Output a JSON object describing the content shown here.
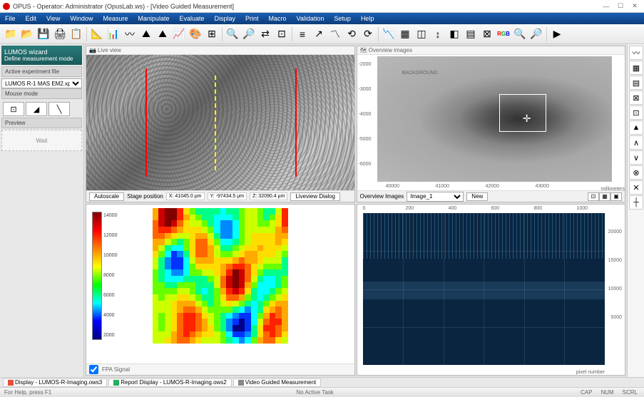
{
  "app": {
    "title": "OPUS - Operator: Administrator (OpusLab.ws) - [Video Guided Measurement]",
    "icon_color": "#d00000"
  },
  "menu": [
    "File",
    "Edit",
    "View",
    "Window",
    "Measure",
    "Manipulate",
    "Evaluate",
    "Display",
    "Print",
    "Macro",
    "Validation",
    "Setup",
    "Help"
  ],
  "toolbar_icons": [
    "📁",
    "📂",
    "💾",
    "🖨",
    "📋",
    "│",
    "📐",
    "📊",
    "〰",
    "⛰",
    "⛰",
    "📈",
    "🎨",
    "⊞",
    "│",
    "🔍",
    "🔎",
    "⇄",
    "⊡",
    "│",
    "≡",
    "↗",
    "〽",
    "⟲",
    "⟳",
    "│",
    "📉",
    "▦",
    "◫",
    "↕",
    "◧",
    "▤",
    "⊠",
    "RGB",
    "🔍",
    "🔎",
    "│",
    "▶"
  ],
  "sidebar": {
    "wizard_title": "LUMOS wizard",
    "wizard_sub": "Define measurement mode",
    "active_exp_label": "Active experiment file",
    "active_exp_value": "LUMOS R-1 MAS EM2.xpm",
    "mouse_mode_label": "Mouse mode",
    "mouse_modes": [
      "⊡",
      "◢",
      "╲"
    ],
    "preview_label": "Preview",
    "preview_text": "Wait"
  },
  "live_view": {
    "title": "Live view",
    "footer": {
      "autoscale_btn": "Autoscale",
      "stage_label": "Stage position",
      "x_coord": "X: 41045.0 µm",
      "y_coord": "Y: -97434.5 µm",
      "z_coord": "Z: 32090.4 µm",
      "liveview_btn": "Liveview Dialog"
    },
    "markers": {
      "red_line_color": "#ff0000",
      "yellow_line_color": "#ffff00"
    }
  },
  "overview": {
    "title": "Overview images",
    "bg_label": "BACKGROUND",
    "axis_ticks_y": [
      "-2000",
      "-3000",
      "-4000",
      "-5000",
      "-6000"
    ],
    "axis_ticks_x": [
      "40000",
      "41000",
      "42000",
      "43000"
    ],
    "axis_unit": "millimeters",
    "footer": {
      "images_label": "Overview Images",
      "dropdown": "Image_1",
      "new_btn": "New",
      "tool_icons": [
        "⊡",
        "▦",
        "▣"
      ]
    }
  },
  "heatmap": {
    "title": "FPA Signal",
    "colorbar_ticks": [
      "14000",
      "12000",
      "10000",
      "8000",
      "6000",
      "4000",
      "2000"
    ],
    "palette": [
      "#800000",
      "#cc0000",
      "#ff2200",
      "#ff6600",
      "#ffaa00",
      "#ffdd00",
      "#ccff00",
      "#66ff00",
      "#00ff88",
      "#00ffff",
      "#0088ff",
      "#0033ff",
      "#000088"
    ],
    "grid_size": 22
  },
  "spectrum": {
    "x_ticks": [
      "0",
      "200",
      "400",
      "600",
      "800",
      "1000"
    ],
    "y_ticks": [
      "5000",
      "10000",
      "15000",
      "20000"
    ],
    "x_label": "pixel number",
    "bg_color": "#0a2540",
    "band_color": "#1a3a5a"
  },
  "right_tools": [
    "〰",
    "▦",
    "▤",
    "⊠",
    "⊡",
    "▲",
    "∧",
    "∨",
    "⊗",
    "✕",
    "┼"
  ],
  "tabs": [
    {
      "icon_color": "#e74c3c",
      "label": "Display - LUMOS-R-Imaging.ows3"
    },
    {
      "icon_color": "#27ae60",
      "label": "Report Display - LUMOS-R-Imaging.ows2"
    },
    {
      "icon_color": "#888888",
      "label": "Video Guided Measurement"
    }
  ],
  "statusbar": {
    "left": "For Help, press F1",
    "center": "No Active Task",
    "indicators": [
      "CAP",
      "NUM",
      "SCRL"
    ]
  }
}
